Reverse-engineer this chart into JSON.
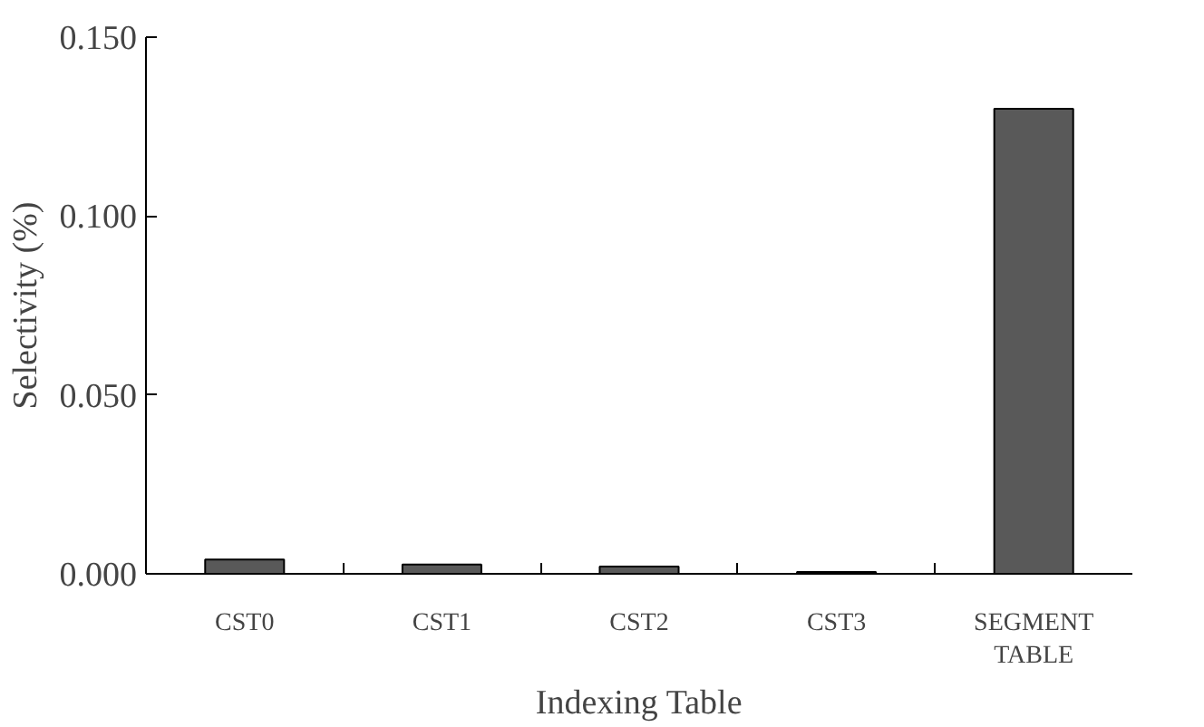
{
  "chart_data": {
    "type": "bar",
    "xlabel": "Indexing Table",
    "ylabel": "Selectivity (%)",
    "categories": [
      "CST0",
      "CST1",
      "CST2",
      "CST3",
      "SEGMENT\nTABLE"
    ],
    "values": [
      0.004,
      0.0026,
      0.002,
      0.0005,
      0.13
    ],
    "color": "#595959",
    "ylim": [
      0,
      0.15
    ],
    "yticks": [
      {
        "value": 0,
        "label": "0.000"
      },
      {
        "value": 0.05,
        "label": "0.050"
      },
      {
        "value": 0.1,
        "label": "0.100"
      },
      {
        "value": 0.15,
        "label": "0.150"
      }
    ],
    "grid": false
  }
}
